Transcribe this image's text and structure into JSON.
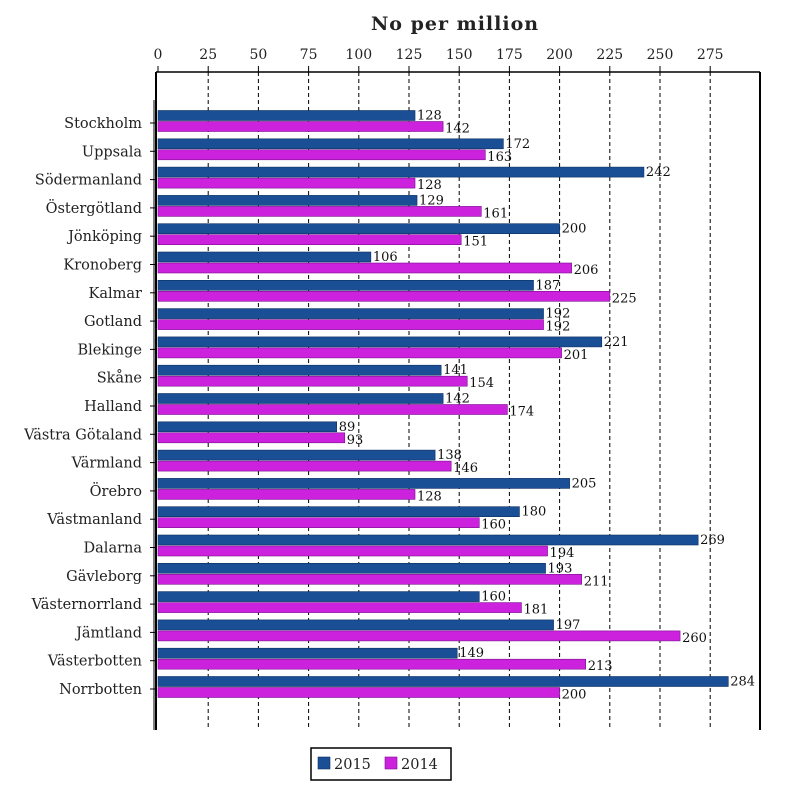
{
  "chart_data": {
    "type": "bar",
    "orientation": "horizontal",
    "title": "No per million",
    "xlim": [
      0,
      290
    ],
    "ticks": [
      0,
      25,
      50,
      75,
      100,
      125,
      150,
      175,
      200,
      225,
      250,
      275
    ],
    "tick_labels": [
      "0",
      "25",
      "50",
      "75",
      "100",
      "125",
      "150",
      "175",
      "200",
      "225",
      "250",
      "275"
    ],
    "grid": "vertical dashed",
    "legend_position": "bottom-left",
    "categories": [
      "Stockholm",
      "Uppsala",
      "Södermanland",
      "Östergötland",
      "Jönköping",
      "Kronoberg",
      "Kalmar",
      "Gotland",
      "Blekinge",
      "Skåne",
      "Halland",
      "Västra Götaland",
      "Värmland",
      "Örebro",
      "Västmanland",
      "Dalarna",
      "Gävleborg",
      "Västernorrland",
      "Jämtland",
      "Västerbotten",
      "Norrbotten"
    ],
    "series": [
      {
        "name": "2015",
        "color": "#1a4f96",
        "values": [
          128,
          172,
          242,
          129,
          200,
          106,
          187,
          192,
          221,
          141,
          142,
          89,
          138,
          205,
          180,
          269,
          193,
          160,
          197,
          149,
          284
        ]
      },
      {
        "name": "2014",
        "color": "#cc22dd",
        "values": [
          142,
          163,
          128,
          161,
          151,
          206,
          225,
          192,
          201,
          154,
          174,
          93,
          146,
          128,
          160,
          194,
          211,
          181,
          260,
          213,
          200
        ]
      }
    ]
  }
}
